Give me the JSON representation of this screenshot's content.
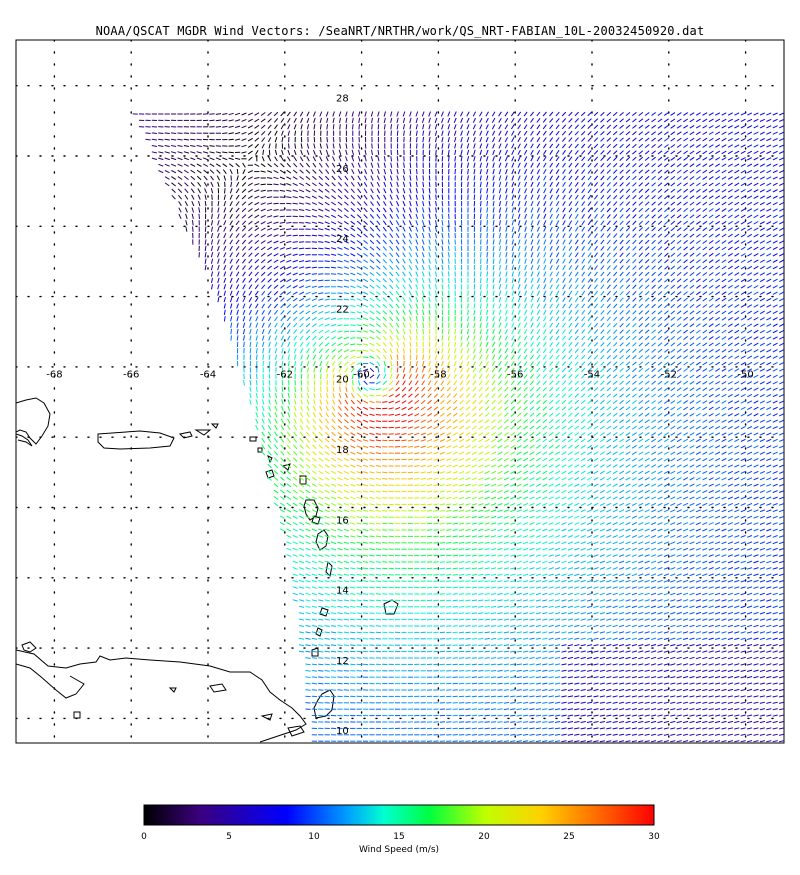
{
  "title": "NOAA/QSCAT MGDR Wind Vectors: /SeaNRT/NRTHR/work/QS_NRT-FABIAN_10L-20032450920.dat",
  "map": {
    "lon_range": [
      -69,
      -49
    ],
    "lat_range": [
      9.3,
      29.3
    ],
    "lon_labels": [
      "-68",
      "-66",
      "-64",
      "-62",
      "-60",
      "-58",
      "-56",
      "-54",
      "-52",
      "-50"
    ],
    "lat_labels": [
      "28",
      "26",
      "24",
      "22",
      "20",
      "18",
      "16",
      "14",
      "12",
      "10"
    ],
    "storm_center": {
      "lon": -59.7,
      "lat": 19.6
    },
    "vector_color_by": "wind speed"
  },
  "colorbar": {
    "label": "Wind Speed (m/s)",
    "min": 0,
    "max": 30,
    "tick_labels": [
      "0",
      "5",
      "10",
      "15",
      "20",
      "25",
      "30"
    ],
    "colors": [
      "#000000",
      "#3a007f",
      "#0000ff",
      "#00a0ff",
      "#00ffd0",
      "#00ff40",
      "#c0ff00",
      "#ffd000",
      "#ff6000",
      "#ff0000"
    ]
  }
}
